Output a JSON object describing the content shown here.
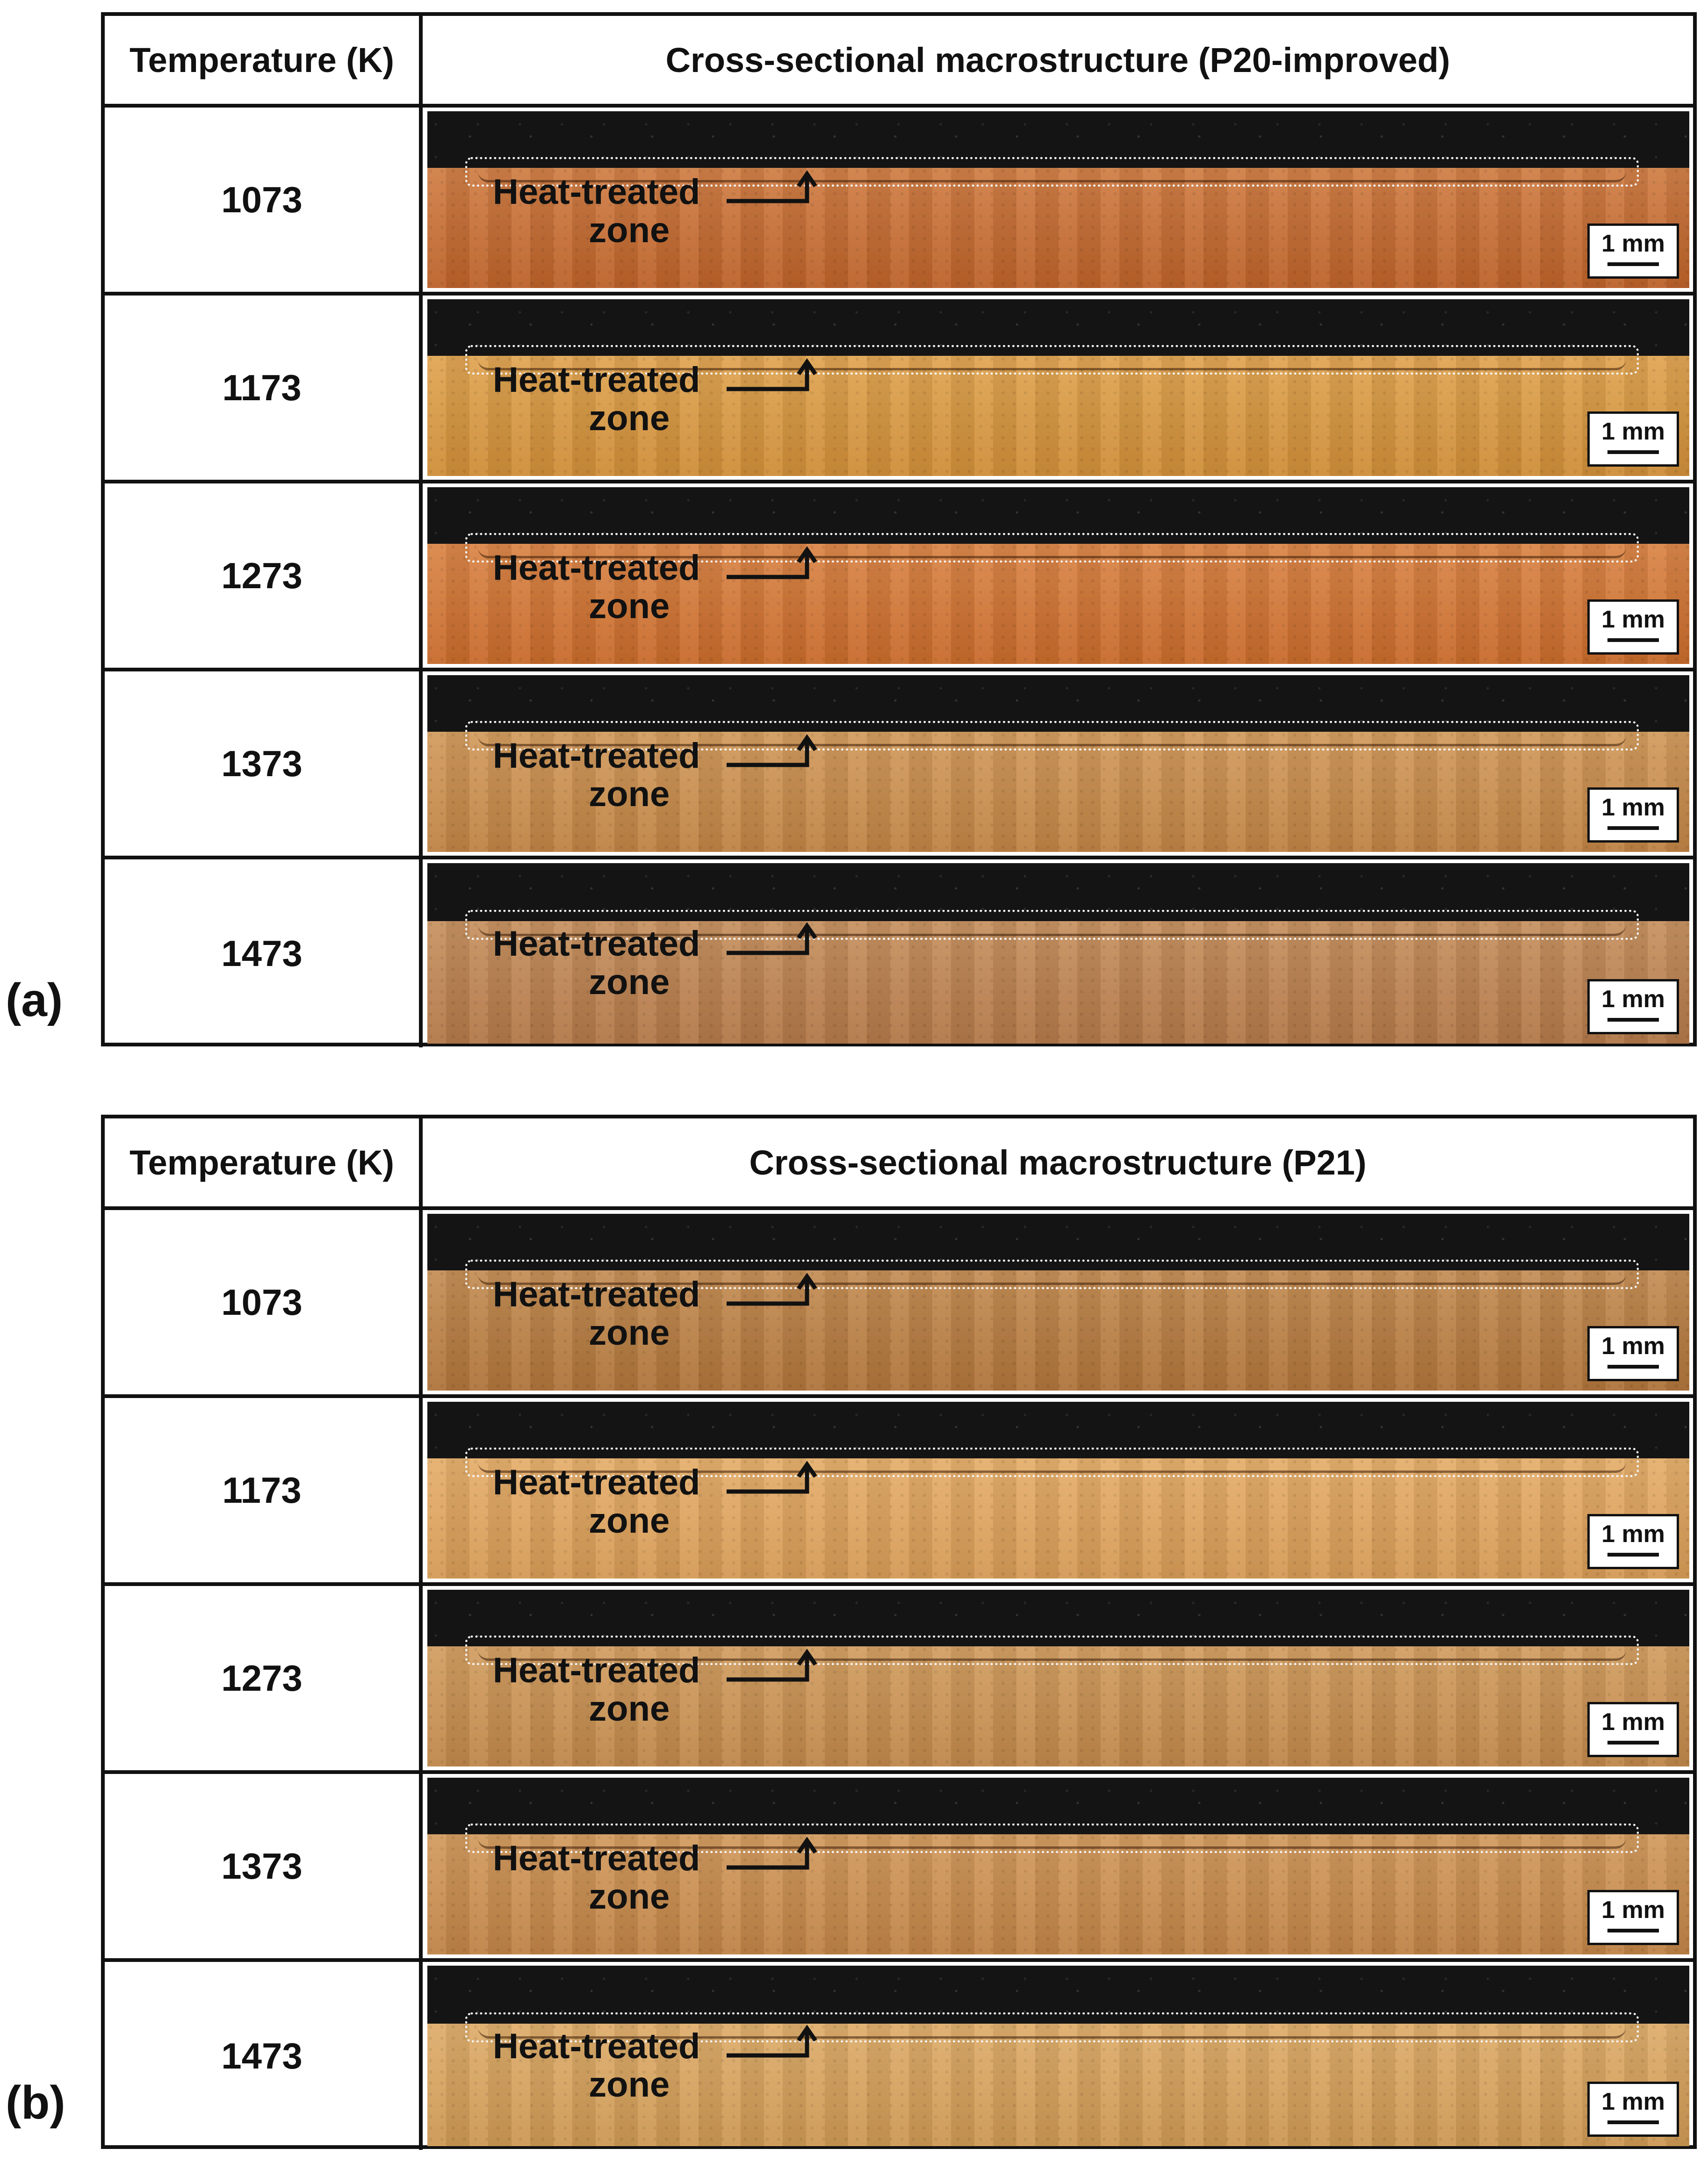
{
  "panels": [
    {
      "label": "(a)",
      "header_temperature": "Temperature (K)",
      "header_cross_section": "Cross-sectional macrostructure (P20-improved)",
      "rows": [
        {
          "temperature": "1073",
          "zone_line1": "Heat-treated",
          "zone_line2": "zone",
          "scale": "1 mm",
          "metal_color": "#c6672c"
        },
        {
          "temperature": "1173",
          "zone_line1": "Heat-treated",
          "zone_line2": "zone",
          "scale": "1 mm",
          "metal_color": "#d9953b"
        },
        {
          "temperature": "1273",
          "zone_line1": "Heat-treated",
          "zone_line2": "zone",
          "scale": "1 mm",
          "metal_color": "#d2702e"
        },
        {
          "temperature": "1373",
          "zone_line1": "Heat-treated",
          "zone_line2": "zone",
          "scale": "1 mm",
          "metal_color": "#c98a48"
        },
        {
          "temperature": "1473",
          "zone_line1": "Heat-treated",
          "zone_line2": "zone",
          "scale": "1 mm",
          "metal_color": "#bb7e4c"
        }
      ]
    },
    {
      "label": "(b)",
      "header_temperature": "Temperature (K)",
      "header_cross_section": "Cross-sectional macrostructure (P21)",
      "rows": [
        {
          "temperature": "1073",
          "zone_line1": "Heat-treated",
          "zone_line2": "zone",
          "scale": "1 mm",
          "metal_color": "#b87a3e"
        },
        {
          "temperature": "1173",
          "zone_line1": "Heat-treated",
          "zone_line2": "zone",
          "scale": "1 mm",
          "metal_color": "#e0a25a"
        },
        {
          "temperature": "1273",
          "zone_line1": "Heat-treated",
          "zone_line2": "zone",
          "scale": "1 mm",
          "metal_color": "#c98e4e"
        },
        {
          "temperature": "1373",
          "zone_line1": "Heat-treated",
          "zone_line2": "zone",
          "scale": "1 mm",
          "metal_color": "#c98a4a"
        },
        {
          "temperature": "1473",
          "zone_line1": "Heat-treated",
          "zone_line2": "zone",
          "scale": "1 mm",
          "metal_color": "#d7a059"
        }
      ]
    }
  ]
}
